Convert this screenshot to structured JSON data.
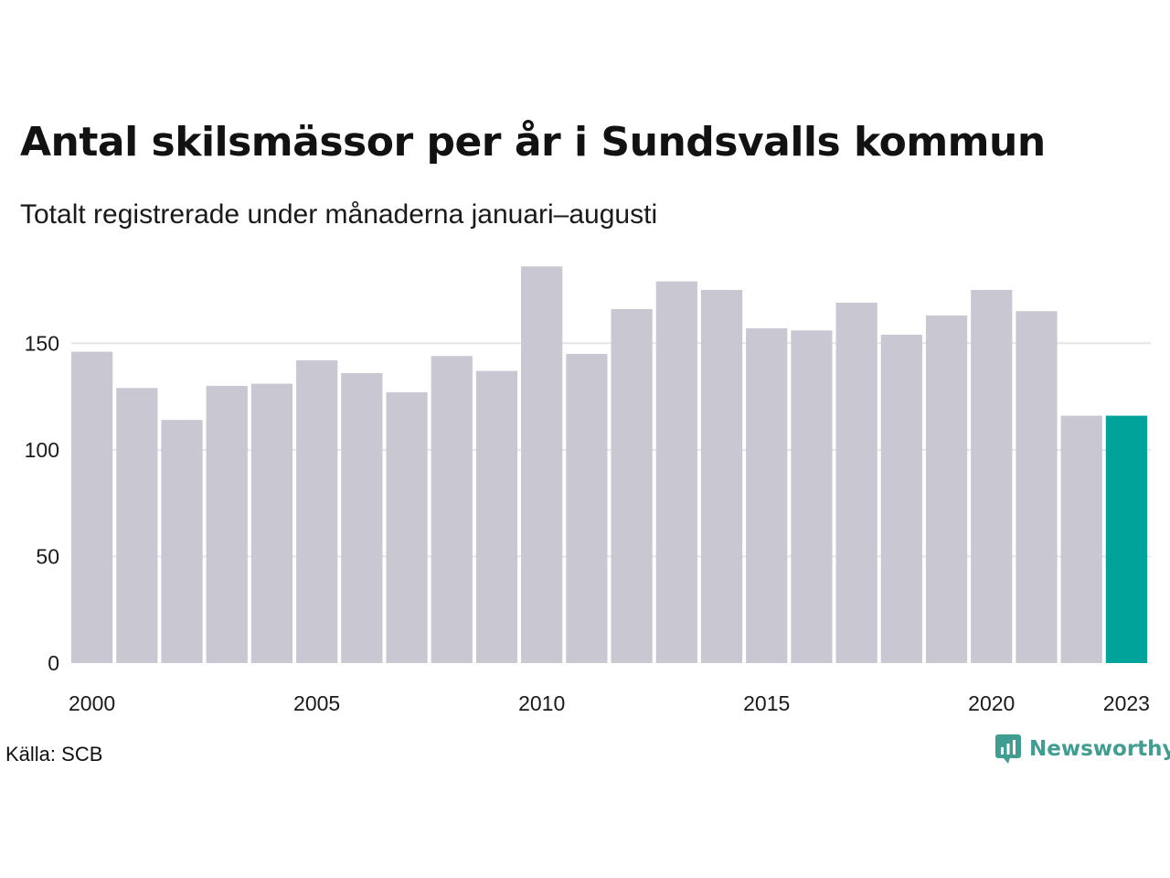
{
  "header": {
    "title": "Antal skilsmässor per år i Sundsvalls kommun",
    "subtitle": "Totalt registrerade under månaderna januari–augusti"
  },
  "footer": {
    "source": "Källa: SCB",
    "brand": "Newsworthy"
  },
  "colors": {
    "bar": "#c8c7d2",
    "highlight": "#00a39a",
    "grid": "#e6e6e6",
    "brand": "#3f9d91"
  },
  "chart_data": {
    "type": "bar",
    "title": "Antal skilsmässor per år i Sundsvalls kommun",
    "subtitle": "Totalt registrerade under månaderna januari–augusti",
    "categories": [
      2000,
      2001,
      2002,
      2003,
      2004,
      2005,
      2006,
      2007,
      2008,
      2009,
      2010,
      2011,
      2012,
      2013,
      2014,
      2015,
      2016,
      2017,
      2018,
      2019,
      2020,
      2021,
      2022,
      2023
    ],
    "values": [
      146,
      129,
      114,
      130,
      131,
      142,
      136,
      127,
      144,
      137,
      186,
      145,
      166,
      179,
      175,
      157,
      156,
      169,
      154,
      163,
      175,
      165,
      116,
      116
    ],
    "highlight_category": 2023,
    "x_tick_labels": [
      "2000",
      "2005",
      "2010",
      "2015",
      "2020",
      "2023"
    ],
    "y_ticks": [
      0,
      50,
      100,
      150
    ],
    "ylim": [
      0,
      190
    ],
    "grid": "horizontal",
    "xlabel": "",
    "ylabel": ""
  }
}
